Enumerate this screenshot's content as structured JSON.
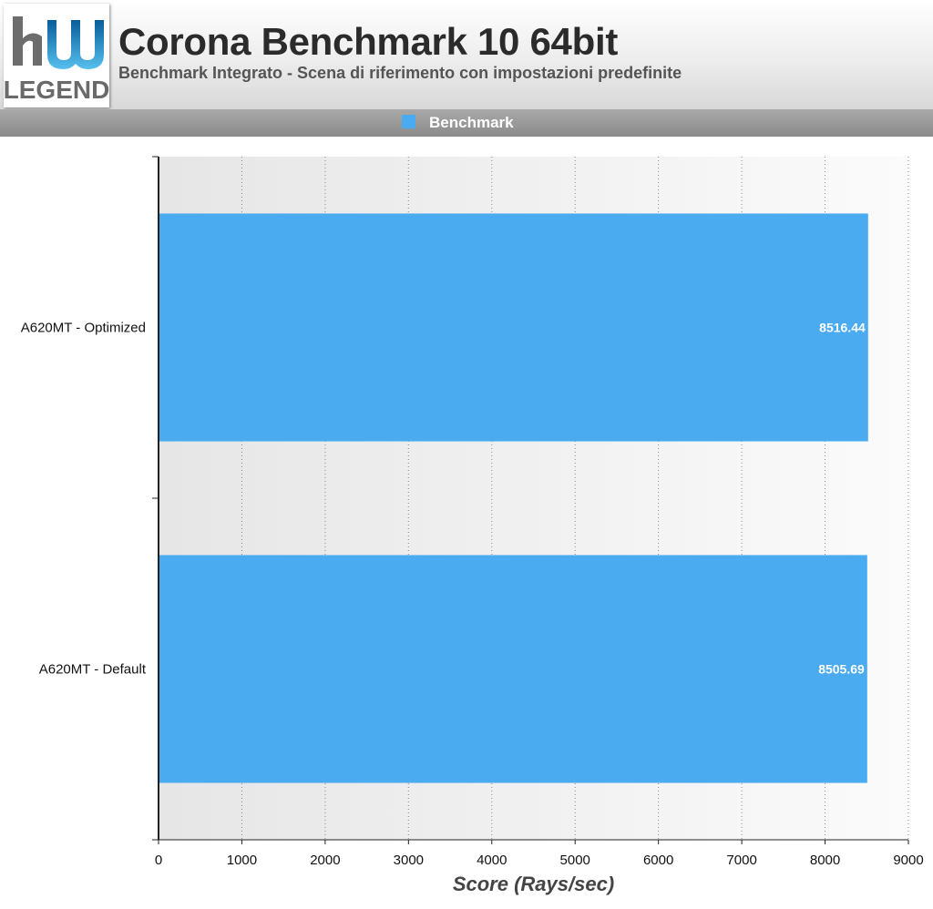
{
  "header": {
    "title": "Corona Benchmark 10 64bit",
    "subtitle": "Benchmark Integrato - Scena di riferimento con impostazioni predefinite",
    "logo_text_top": "hw",
    "logo_text_bottom": "LEGEND"
  },
  "legend": {
    "label": "Benchmark",
    "color": "#4aabf0"
  },
  "chart_data": {
    "type": "bar",
    "orientation": "horizontal",
    "title": "Corona Benchmark 10 64bit",
    "subtitle": "Benchmark Integrato - Scena di riferimento con impostazioni predefinite",
    "categories": [
      "A620MT - Optimized",
      "A620MT - Default"
    ],
    "series": [
      {
        "name": "Benchmark",
        "values": [
          8516.44,
          8505.69
        ],
        "color": "#4aabf0"
      }
    ],
    "data_labels": [
      "8516.44",
      "8505.69"
    ],
    "xlabel": "Score (Rays/sec)",
    "ylabel": "",
    "xlim": [
      0,
      9000
    ],
    "xticks": [
      0,
      1000,
      2000,
      3000,
      4000,
      5000,
      6000,
      7000,
      8000,
      9000
    ],
    "grid": "vertical dotted",
    "legend_position": "top-center"
  }
}
